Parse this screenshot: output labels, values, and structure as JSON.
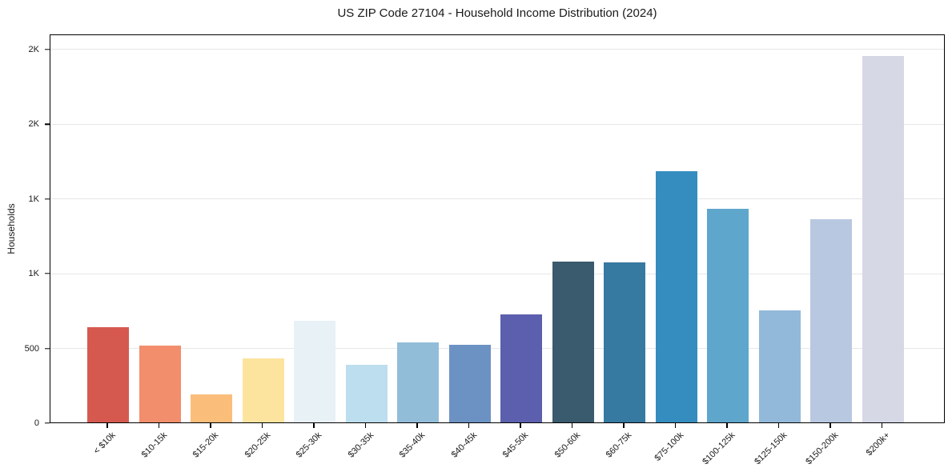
{
  "chart_data": {
    "type": "bar",
    "title": "US ZIP Code 27104 - Household Income Distribution (2024)",
    "xlabel": "",
    "ylabel": "Households",
    "categories": [
      "< $10k",
      "$10-15k",
      "$15-20k",
      "$20-25k",
      "$25-30k",
      "$30-35k",
      "$35-40k",
      "$40-45k",
      "$45-50k",
      "$50-60k",
      "$60-75k",
      "$75-100k",
      "$100-125k",
      "$125-150k",
      "$150-200k",
      "$200k+"
    ],
    "values": [
      640,
      515,
      190,
      430,
      685,
      385,
      540,
      520,
      725,
      1080,
      1075,
      1690,
      1440,
      755,
      1365,
      2465
    ],
    "bar_colors": [
      "#d5594f",
      "#f28e6c",
      "#fbbd7a",
      "#fde49e",
      "#e8f1f6",
      "#bcdeee",
      "#92bdd8",
      "#6c92c3",
      "#5c5fae",
      "#3a5a6d",
      "#3679a1",
      "#358dbf",
      "#5ea6cc",
      "#92b9d9",
      "#b9c8e1",
      "#d6d8e6"
    ],
    "ylim": [
      0,
      2600
    ],
    "yticks": [
      {
        "value": 0,
        "label": "0"
      },
      {
        "value": 500,
        "label": "500"
      },
      {
        "value": 1000,
        "label": "1K"
      },
      {
        "value": 1500,
        "label": "1K"
      },
      {
        "value": 2000,
        "label": "2K"
      },
      {
        "value": 2500,
        "label": "2K"
      }
    ],
    "grid": "horizontal",
    "legend": "none",
    "axis_color": "#000000",
    "gridline_color": "#e7e7e7"
  }
}
